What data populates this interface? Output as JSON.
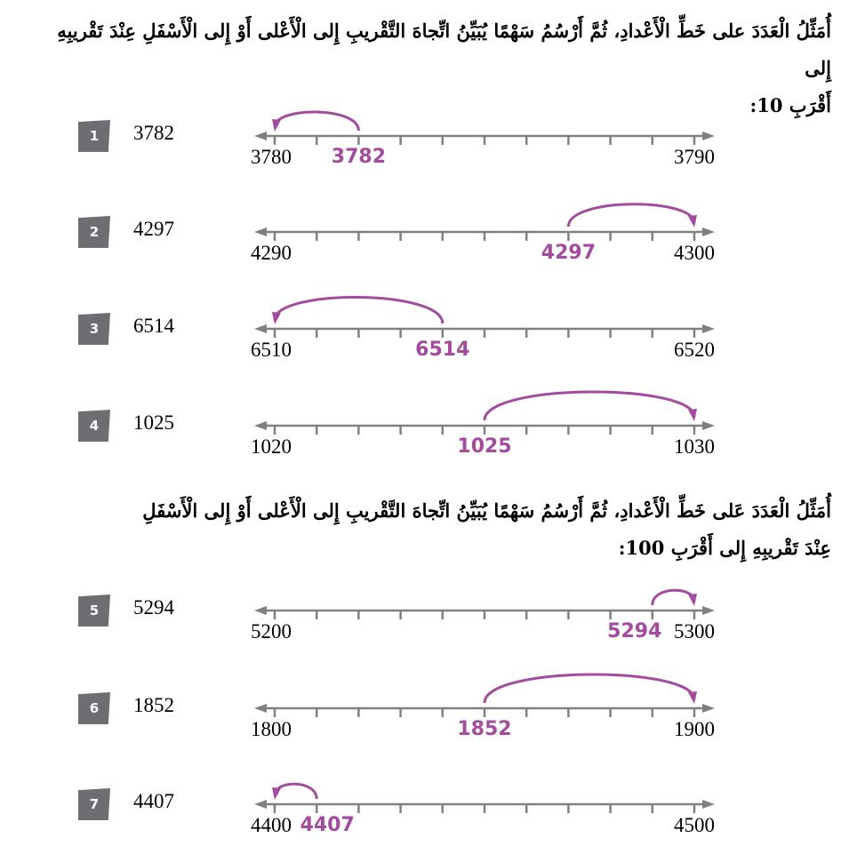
{
  "colors": {
    "axis": "#808080",
    "accent": "#a24b9f",
    "badge": "#6d6e71"
  },
  "section1": {
    "instruction_line1": "أُمَثِّلُ الْعَدَدَ على خَطِّ الْأَعْدادِ، ثُمَّ أَرْسُمُ سَهْمًا يُبَيِّنُ اتِّجاهَ التَّقْريبِ إِلى الْأَعْلى أَوْ إِلى الْأَسْفَلِ عِنْدَ تَقْريبِهِ إِلى",
    "instruction_line2": "أَقْرَبِ 10:"
  },
  "section2": {
    "instruction_line1": "أُمَثِّلُ الْعَدَدَ عَلى خَطِّ الْأَعْدادِ، ثُمَّ أَرْسُمُ سَهْمًا يُبَيِّنُ اتِّجاهَ التَّقْريبِ إِلى الْأَعْلى أَوْ إِلى الْأَسْفَلِ",
    "instruction_line2": "عِنْدَ تَقْريبِهِ إِلى أَقْرَبِ 100:"
  },
  "exercises": [
    {
      "id": "1",
      "number": "3782",
      "start": "3780",
      "end": "3790",
      "point_label": "3782",
      "point_tick": 2,
      "target_tick": 0,
      "direction": "down"
    },
    {
      "id": "2",
      "number": "4297",
      "start": "4290",
      "end": "4300",
      "point_label": "4297",
      "point_tick": 7,
      "target_tick": 10,
      "direction": "up"
    },
    {
      "id": "3",
      "number": "6514",
      "start": "6510",
      "end": "6520",
      "point_label": "6514",
      "point_tick": 4,
      "target_tick": 0,
      "direction": "down"
    },
    {
      "id": "4",
      "number": "1025",
      "start": "1020",
      "end": "1030",
      "point_label": "1025",
      "point_tick": 5,
      "target_tick": 10,
      "direction": "up"
    },
    {
      "id": "5",
      "number": "5294",
      "start": "5200",
      "end": "5300",
      "point_label": "5294",
      "point_tick": 9,
      "target_tick": 10,
      "direction": "up"
    },
    {
      "id": "6",
      "number": "1852",
      "start": "1800",
      "end": "1900",
      "point_label": "1852",
      "point_tick": 5,
      "target_tick": 10,
      "direction": "up"
    },
    {
      "id": "7",
      "number": "4407",
      "start": "4400",
      "end": "4500",
      "point_label": "4407",
      "point_tick": 1,
      "target_tick": 0,
      "direction": "down"
    }
  ]
}
